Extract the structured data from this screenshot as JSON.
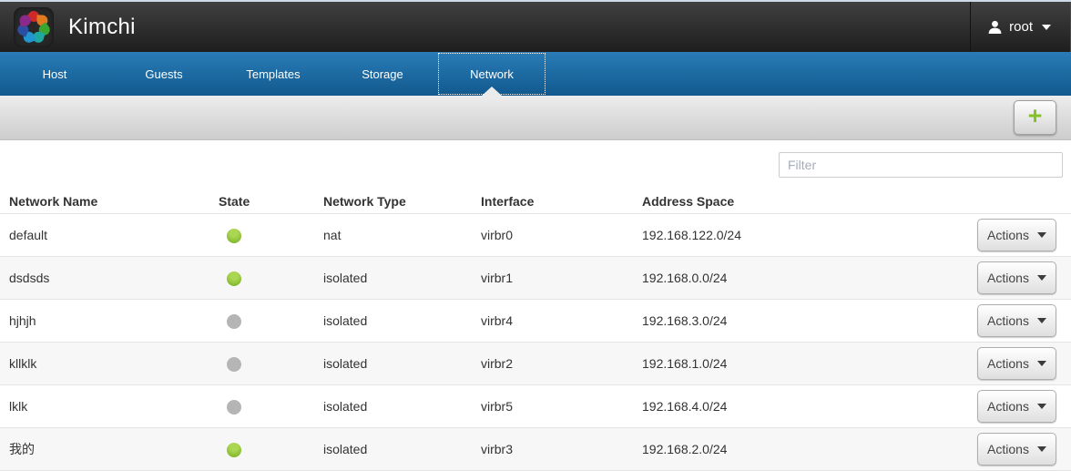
{
  "header": {
    "app_title": "Kimchi",
    "user": {
      "name": "root"
    }
  },
  "nav": {
    "tabs": [
      {
        "label": "Host",
        "active": false
      },
      {
        "label": "Guests",
        "active": false
      },
      {
        "label": "Templates",
        "active": false
      },
      {
        "label": "Storage",
        "active": false
      },
      {
        "label": "Network",
        "active": true
      }
    ]
  },
  "toolbar": {
    "add_label": "+"
  },
  "filter": {
    "placeholder": "Filter",
    "value": ""
  },
  "table": {
    "columns": [
      "Network Name",
      "State",
      "Network Type",
      "Interface",
      "Address Space"
    ],
    "actions_label": "Actions",
    "rows": [
      {
        "name": "default",
        "state": "up",
        "type": "nat",
        "interface": "virbr0",
        "address": "192.168.122.0/24"
      },
      {
        "name": "dsdsds",
        "state": "up",
        "type": "isolated",
        "interface": "virbr1",
        "address": "192.168.0.0/24"
      },
      {
        "name": "hjhjh",
        "state": "down",
        "type": "isolated",
        "interface": "virbr4",
        "address": "192.168.3.0/24"
      },
      {
        "name": "kllklk",
        "state": "down",
        "type": "isolated",
        "interface": "virbr2",
        "address": "192.168.1.0/24"
      },
      {
        "name": "lklk",
        "state": "down",
        "type": "isolated",
        "interface": "virbr5",
        "address": "192.168.4.0/24"
      },
      {
        "name": "我的",
        "state": "up",
        "type": "isolated",
        "interface": "virbr3",
        "address": "192.168.2.0/24"
      }
    ]
  },
  "colors": {
    "state_up": "#85bb2f",
    "state_down": "#b5b5b5",
    "plus_green": "#84c226",
    "nav_blue_top": "#2a7cb7",
    "nav_blue_bottom": "#11598e",
    "logo_petals": [
      "#cf2828",
      "#e07a1f",
      "#3aa52f",
      "#1fa8a0",
      "#2196d0",
      "#2b4ea0",
      "#8b2a8b"
    ]
  }
}
